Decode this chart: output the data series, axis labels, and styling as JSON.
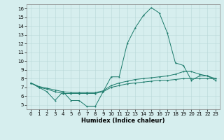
{
  "title": "",
  "xlabel": "Humidex (Indice chaleur)",
  "ylabel": "",
  "bg_color": "#d6eeee",
  "line_color": "#1a7a6a",
  "grid_color": "#b8d8d8",
  "xlim": [
    -0.5,
    23.5
  ],
  "ylim": [
    4.5,
    16.5
  ],
  "xticks": [
    0,
    1,
    2,
    3,
    4,
    5,
    6,
    7,
    8,
    9,
    10,
    11,
    12,
    13,
    14,
    15,
    16,
    17,
    18,
    19,
    20,
    21,
    22,
    23
  ],
  "yticks": [
    5,
    6,
    7,
    8,
    9,
    10,
    11,
    12,
    13,
    14,
    15,
    16
  ],
  "series": [
    {
      "x": [
        0,
        1,
        2,
        3,
        4,
        5,
        6,
        7,
        8,
        9,
        10,
        11,
        12,
        13,
        14,
        15,
        16,
        17,
        18,
        19,
        20,
        21,
        22,
        23
      ],
      "y": [
        7.5,
        7.0,
        6.5,
        5.5,
        6.5,
        5.5,
        5.5,
        4.8,
        4.8,
        6.5,
        8.2,
        8.2,
        12.0,
        13.8,
        15.2,
        16.1,
        15.5,
        13.2,
        9.8,
        9.5,
        7.8,
        8.3,
        8.3,
        7.8
      ]
    },
    {
      "x": [
        0,
        1,
        2,
        3,
        4,
        5,
        6,
        7,
        8,
        9,
        10,
        11,
        12,
        13,
        14,
        15,
        16,
        17,
        18,
        19,
        20,
        21,
        22,
        23
      ],
      "y": [
        7.5,
        7.0,
        6.8,
        6.5,
        6.3,
        6.3,
        6.3,
        6.3,
        6.3,
        6.5,
        7.0,
        7.2,
        7.4,
        7.5,
        7.6,
        7.7,
        7.8,
        7.8,
        7.9,
        8.0,
        8.0,
        8.0,
        8.0,
        8.0
      ]
    },
    {
      "x": [
        0,
        1,
        2,
        3,
        4,
        5,
        6,
        7,
        8,
        9,
        10,
        11,
        12,
        13,
        14,
        15,
        16,
        17,
        18,
        19,
        20,
        21,
        22,
        23
      ],
      "y": [
        7.5,
        7.1,
        6.9,
        6.7,
        6.5,
        6.4,
        6.4,
        6.4,
        6.4,
        6.6,
        7.2,
        7.5,
        7.7,
        7.9,
        8.0,
        8.1,
        8.2,
        8.3,
        8.5,
        8.8,
        8.8,
        8.5,
        8.3,
        8.0
      ]
    }
  ]
}
